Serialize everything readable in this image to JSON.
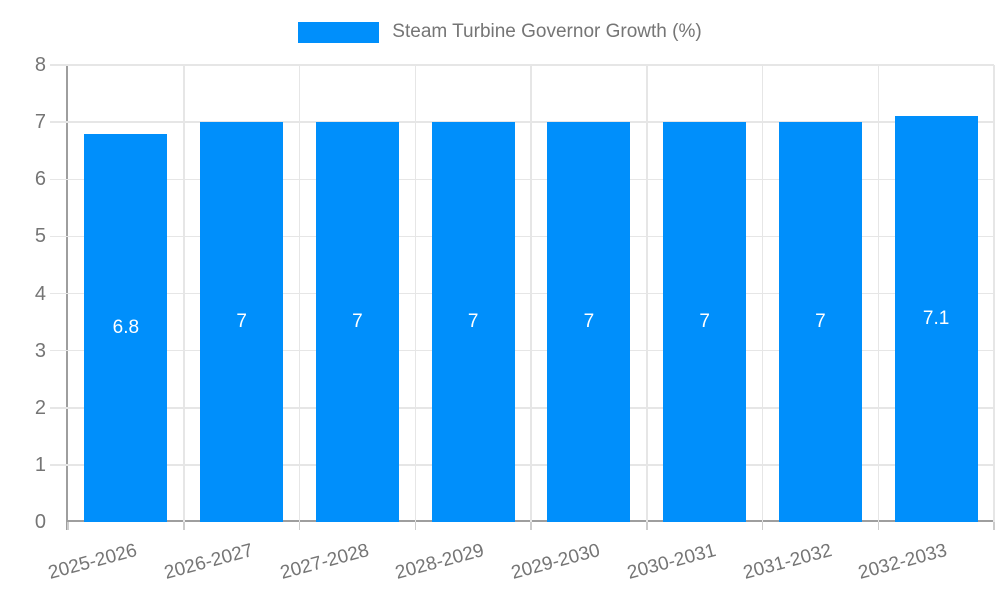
{
  "legend": {
    "label": "Steam Turbine Governor Growth (%)"
  },
  "chart_data": {
    "type": "bar",
    "title": "Steam Turbine Governor Growth (%)",
    "categories": [
      "2025-2026",
      "2026-2027",
      "2027-2028",
      "2028-2029",
      "2029-2030",
      "2030-2031",
      "2031-2032",
      "2032-2033"
    ],
    "values": [
      6.8,
      7,
      7,
      7,
      7,
      7,
      7,
      7.1
    ],
    "bar_labels": [
      "6.8",
      "7",
      "7",
      "7",
      "7",
      "7",
      "7",
      "7.1"
    ],
    "xlabel": "",
    "ylabel": "",
    "ylim": [
      0,
      8
    ],
    "ytick_step": 1,
    "yticks": [
      0,
      1,
      2,
      3,
      4,
      5,
      6,
      7,
      8
    ],
    "grid": true,
    "legend_position": "top-center",
    "x_label_rotation_deg": -15,
    "colors": {
      "bar": "#008FFB",
      "bar_label": "#ffffff",
      "grid": "#e6e6e6",
      "axis": "#9e9e9e",
      "tick": "#cccccc",
      "text": "#757575",
      "background": "#ffffff"
    }
  }
}
